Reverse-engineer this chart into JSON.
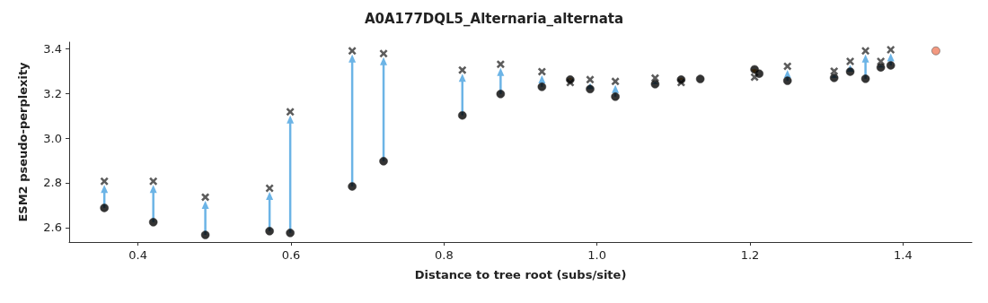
{
  "chart_data": {
    "type": "scatter",
    "title": "A0A177DQL5_Alternaria_alternata",
    "xlabel": "Distance to tree root (subs/site)",
    "ylabel": "ESM2 pseudo-perplexity",
    "x": [
      0.356,
      0.42,
      0.488,
      0.572,
      0.599,
      0.68,
      0.721,
      0.824,
      0.874,
      0.928,
      0.965,
      0.991,
      1.024,
      1.076,
      1.11,
      1.135,
      1.206,
      1.212,
      1.249,
      1.31,
      1.331,
      1.351,
      1.371,
      1.384
    ],
    "series": [
      {
        "color": "#000000",
        "marker": "circle",
        "values": [
          2.688,
          2.624,
          2.567,
          2.584,
          2.576,
          2.784,
          2.897,
          3.102,
          3.198,
          3.23,
          3.262,
          3.22,
          3.186,
          3.242,
          3.262,
          3.265,
          3.308,
          3.289,
          3.257,
          3.27,
          3.298,
          3.266,
          3.317,
          3.326
        ]
      },
      {
        "color": "#333333",
        "marker": "cross",
        "values": [
          2.807,
          2.807,
          2.736,
          2.776,
          3.118,
          3.391,
          3.379,
          3.305,
          3.331,
          3.298,
          3.249,
          3.262,
          3.254,
          3.269,
          3.249,
          null,
          3.273,
          null,
          3.322,
          3.3,
          3.344,
          3.391,
          3.344,
          3.396
        ]
      },
      {
        "color": "#f08060",
        "marker": "circle",
        "x": [
          1.443
        ],
        "values": [
          3.391
        ]
      }
    ],
    "xlim": [
      0.31,
      1.49
    ],
    "xticks": [
      0.4,
      0.6,
      0.8,
      {
        "value": 1,
        "label": "1.0"
      },
      1.2,
      1.4
    ],
    "ylim": [
      2.535,
      3.43
    ],
    "yticks": [
      2.6,
      2.8,
      {
        "value": 3,
        "label": "3.0"
      },
      3.2,
      3.4
    ],
    "grid": false
  }
}
